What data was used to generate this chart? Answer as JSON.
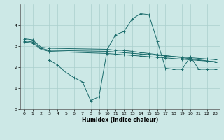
{
  "xlabel": "Humidex (Indice chaleur)",
  "bg_color": "#cce8e6",
  "line_color": "#1a6b6b",
  "grid_color": "#aacfcd",
  "xlim": [
    -0.5,
    23.5
  ],
  "ylim": [
    0,
    5
  ],
  "yticks": [
    0,
    1,
    2,
    3,
    4
  ],
  "xticks": [
    0,
    1,
    2,
    3,
    4,
    5,
    6,
    7,
    8,
    9,
    10,
    11,
    12,
    13,
    14,
    15,
    16,
    17,
    18,
    19,
    20,
    21,
    22,
    23
  ],
  "series1_x": [
    0,
    1,
    2,
    3,
    10,
    11,
    12,
    13,
    14,
    15,
    16,
    17,
    18,
    19,
    20,
    21,
    22,
    23
  ],
  "series1_y": [
    3.35,
    3.3,
    2.95,
    2.9,
    2.85,
    2.8,
    2.8,
    2.75,
    2.7,
    2.65,
    2.6,
    2.55,
    2.5,
    2.45,
    2.4,
    2.35,
    2.3,
    2.25
  ],
  "series2_x": [
    0,
    1,
    2,
    3,
    10,
    11,
    12,
    13,
    14,
    15,
    16,
    17,
    18,
    19,
    20,
    21,
    22,
    23
  ],
  "series2_y": [
    3.25,
    3.2,
    2.9,
    2.8,
    2.75,
    2.72,
    2.69,
    2.66,
    2.63,
    2.6,
    2.57,
    2.54,
    2.51,
    2.48,
    2.45,
    2.42,
    2.39,
    2.36
  ],
  "series3_x": [
    0,
    1,
    2,
    3,
    10,
    11,
    12,
    13,
    14,
    15,
    16,
    17,
    18,
    19,
    20,
    21,
    22,
    23
  ],
  "series3_y": [
    3.2,
    3.15,
    2.85,
    2.75,
    2.65,
    2.62,
    2.59,
    2.56,
    2.53,
    2.5,
    2.47,
    2.44,
    2.41,
    2.38,
    2.35,
    2.32,
    2.29,
    2.26
  ],
  "series4_x": [
    3,
    4,
    5,
    6,
    7,
    8,
    9,
    10,
    11,
    12,
    13,
    14,
    15,
    16,
    17,
    18,
    19,
    20,
    21,
    22,
    23
  ],
  "series4_y": [
    2.35,
    2.1,
    1.75,
    1.5,
    1.3,
    0.4,
    0.6,
    2.85,
    3.55,
    3.7,
    4.3,
    4.55,
    4.5,
    3.25,
    1.95,
    1.9,
    1.9,
    2.5,
    1.9,
    1.9,
    1.9
  ]
}
